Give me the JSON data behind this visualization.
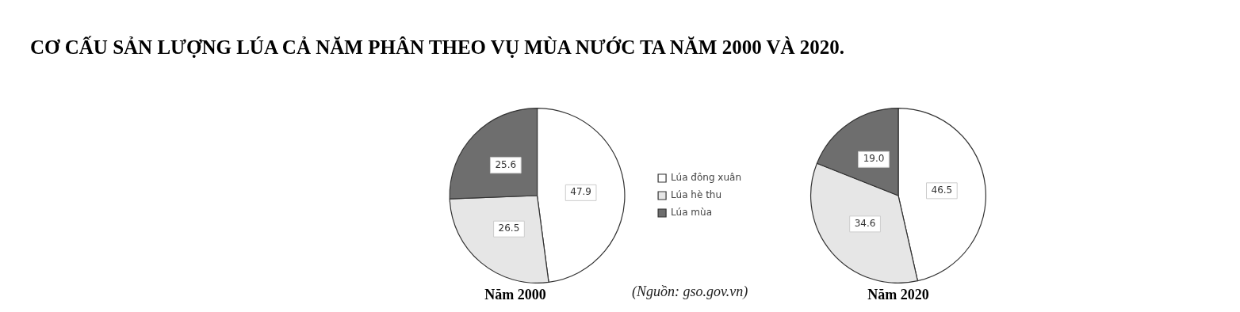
{
  "chart_data": [
    {
      "type": "pie",
      "title": "CƠ CẤU SẢN LƯỢNG LÚA CẢ NĂM PHÂN THEO VỤ MÙA NƯỚC TA NĂM 2000 VÀ 2020.",
      "subtitle": "Năm 2000",
      "categories": [
        "Lúa đông xuân",
        "Lúa hè thu",
        "Lúa mùa"
      ],
      "values": [
        47.9,
        26.5,
        25.6
      ],
      "colors": [
        "#ffffff",
        "#e6e6e6",
        "#6e6e6e"
      ],
      "data_labels": true,
      "legend": "right",
      "annotations": [
        "(Nguồn: gso.gov.vn)"
      ]
    },
    {
      "type": "pie",
      "subtitle": "Năm 2020",
      "categories": [
        null,
        null,
        null
      ],
      "values": [
        46.5,
        34.6,
        19.0
      ],
      "value_labels": [
        "46.5",
        "34.6",
        "19.0"
      ],
      "colors": [
        "#ffffff",
        "#e6e6e6",
        "#6e6e6e"
      ],
      "legend": false
    }
  ]
}
